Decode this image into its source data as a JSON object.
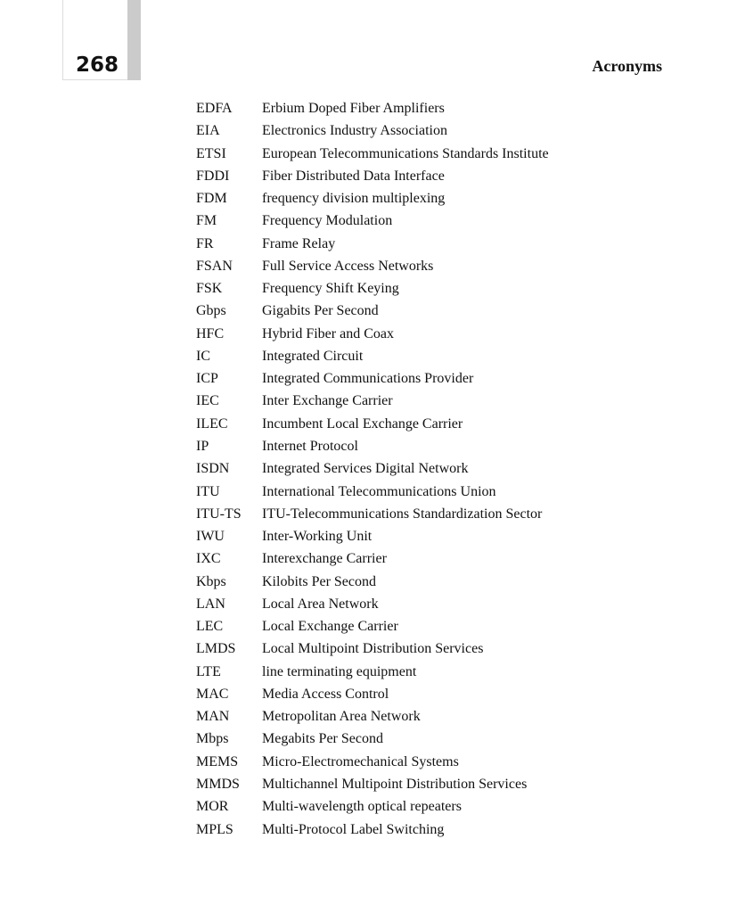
{
  "header": {
    "page_number": "268",
    "section_title": "Acronyms"
  },
  "acronyms": [
    [
      "EDFA",
      "Erbium Doped Fiber Amplifiers"
    ],
    [
      "EIA",
      "Electronics Industry Association"
    ],
    [
      "ETSI",
      "European Telecommunications Standards Institute"
    ],
    [
      "FDDI",
      "Fiber Distributed Data Interface"
    ],
    [
      "FDM",
      "frequency division multiplexing"
    ],
    [
      "FM",
      "Frequency Modulation"
    ],
    [
      "FR",
      "Frame Relay"
    ],
    [
      "FSAN",
      "Full Service Access Networks"
    ],
    [
      "FSK",
      "Frequency Shift Keying"
    ],
    [
      "Gbps",
      "Gigabits Per Second"
    ],
    [
      "HFC",
      "Hybrid Fiber and Coax"
    ],
    [
      "IC",
      "Integrated Circuit"
    ],
    [
      "ICP",
      "Integrated Communications Provider"
    ],
    [
      "IEC",
      "Inter Exchange Carrier"
    ],
    [
      "ILEC",
      "Incumbent Local Exchange Carrier"
    ],
    [
      "IP",
      "Internet Protocol"
    ],
    [
      "ISDN",
      "Integrated Services Digital Network"
    ],
    [
      "ITU",
      "International Telecommunications Union"
    ],
    [
      "ITU-TS",
      "ITU-Telecommunications Standardization Sector"
    ],
    [
      "IWU",
      "Inter-Working Unit"
    ],
    [
      "IXC",
      "Interexchange Carrier"
    ],
    [
      "Kbps",
      "Kilobits Per Second"
    ],
    [
      "LAN",
      "Local Area Network"
    ],
    [
      "LEC",
      "Local Exchange Carrier"
    ],
    [
      "LMDS",
      "Local Multipoint Distribution Services"
    ],
    [
      "LTE",
      "line terminating equipment"
    ],
    [
      "MAC",
      "Media Access Control"
    ],
    [
      "MAN",
      "Metropolitan Area Network"
    ],
    [
      "Mbps",
      "Megabits Per Second"
    ],
    [
      "MEMS",
      "Micro-Electromechanical Systems"
    ],
    [
      "MMDS",
      "Multichannel Multipoint Distribution Services"
    ],
    [
      "MOR",
      "Multi-wavelength optical repeaters"
    ],
    [
      "MPLS",
      "Multi-Protocol Label Switching"
    ]
  ]
}
